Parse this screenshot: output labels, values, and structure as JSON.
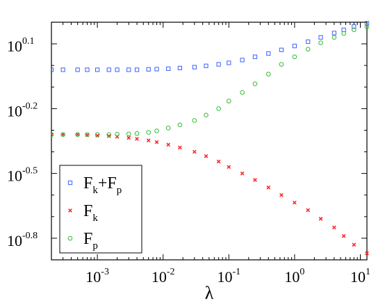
{
  "chart_data": {
    "type": "scatter",
    "title": "",
    "xlabel": "λ",
    "ylabel": "",
    "xscale": "log",
    "yscale": "log",
    "xlim": [
      0.0002,
      12.6
    ],
    "ylim_log10": [
      -0.9,
      0.2
    ],
    "grid": false,
    "legend_position": "bottom-left",
    "x_ticks": [
      {
        "base": "10",
        "exp": "-3",
        "value": 0.001
      },
      {
        "base": "10",
        "exp": "-2",
        "value": 0.01
      },
      {
        "base": "10",
        "exp": "-1",
        "value": 0.1
      },
      {
        "base": "10",
        "exp": "0",
        "value": 1
      },
      {
        "base": "10",
        "exp": "1",
        "value": 10
      }
    ],
    "y_ticks": [
      {
        "base": "10",
        "exp": "0.1",
        "log10": 0.1
      },
      {
        "base": "10",
        "exp": "-0.2",
        "log10": -0.2
      },
      {
        "base": "10",
        "exp": "-0.5",
        "log10": -0.5
      },
      {
        "base": "10",
        "exp": "-0.8",
        "log10": -0.8
      }
    ],
    "x": [
      0.0002,
      0.0003,
      0.0005,
      0.0007,
      0.001,
      0.0015,
      0.002,
      0.003,
      0.004,
      0.006,
      0.008,
      0.012,
      0.018,
      0.03,
      0.045,
      0.07,
      0.1,
      0.16,
      0.25,
      0.4,
      0.63,
      1.0,
      1.6,
      2.5,
      4.0,
      5.6,
      8.0,
      12.6
    ],
    "series": [
      {
        "name": "F_k+F_p",
        "legend_main": "F",
        "legend_parts": [
          [
            "k",
            "+F"
          ],
          [
            "p",
            ""
          ]
        ],
        "marker": "square",
        "color": "#3a5fff",
        "log10_y": [
          -0.02,
          -0.02,
          -0.02,
          -0.02,
          -0.02,
          -0.02,
          -0.02,
          -0.02,
          -0.02,
          -0.018,
          -0.017,
          -0.015,
          -0.012,
          -0.008,
          -0.002,
          0.005,
          0.012,
          0.025,
          0.04,
          0.055,
          0.072,
          0.09,
          0.11,
          0.13,
          0.15,
          0.165,
          0.18,
          0.195
        ]
      },
      {
        "name": "F_k",
        "legend_main": "F",
        "legend_parts": [
          [
            "k",
            ""
          ]
        ],
        "marker": "x",
        "color": "#ff2a2a",
        "log10_y": [
          -0.32,
          -0.32,
          -0.32,
          -0.322,
          -0.325,
          -0.327,
          -0.33,
          -0.335,
          -0.34,
          -0.347,
          -0.355,
          -0.367,
          -0.38,
          -0.4,
          -0.42,
          -0.445,
          -0.47,
          -0.5,
          -0.53,
          -0.565,
          -0.6,
          -0.635,
          -0.67,
          -0.71,
          -0.75,
          -0.79,
          -0.83,
          -0.87
        ]
      },
      {
        "name": "F_p",
        "legend_main": "F",
        "legend_parts": [
          [
            "p",
            ""
          ]
        ],
        "marker": "circle",
        "color": "#33bb33",
        "log10_y": [
          -0.32,
          -0.32,
          -0.32,
          -0.32,
          -0.32,
          -0.32,
          -0.318,
          -0.317,
          -0.315,
          -0.31,
          -0.303,
          -0.29,
          -0.275,
          -0.255,
          -0.23,
          -0.2,
          -0.165,
          -0.125,
          -0.085,
          -0.04,
          0.005,
          0.04,
          0.075,
          0.105,
          0.13,
          0.148,
          0.165,
          0.178
        ]
      }
    ]
  }
}
